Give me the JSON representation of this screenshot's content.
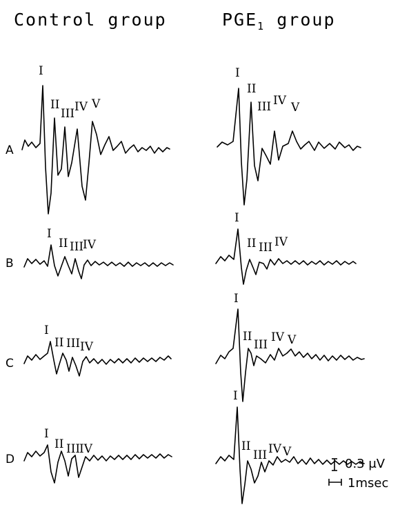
{
  "columns": [
    {
      "title": "Control group"
    },
    {
      "title": "PGE",
      "subscript": "1",
      "suffix": " group"
    }
  ],
  "rows": [
    {
      "label": "A",
      "left_peaks": [
        "I",
        "II",
        "III",
        "IV",
        "V"
      ],
      "right_peaks": [
        "I",
        "II",
        "III",
        "IV",
        "V"
      ]
    },
    {
      "label": "B",
      "left_peaks": [
        "I",
        "II",
        "III",
        "IV"
      ],
      "right_peaks": [
        "I",
        "II",
        "III",
        "IV"
      ]
    },
    {
      "label": "C",
      "left_peaks": [
        "I",
        "II",
        "III",
        "IV"
      ],
      "right_peaks": [
        "I",
        "II",
        "III",
        "IV",
        "V"
      ]
    },
    {
      "label": "D",
      "left_peaks": [
        "I",
        "II",
        "III",
        "IV"
      ],
      "right_peaks": [
        "I",
        "II",
        "III",
        "IV",
        "V"
      ]
    }
  ],
  "scale_bars": {
    "voltage": "0.3 μV",
    "time": "1msec"
  }
}
